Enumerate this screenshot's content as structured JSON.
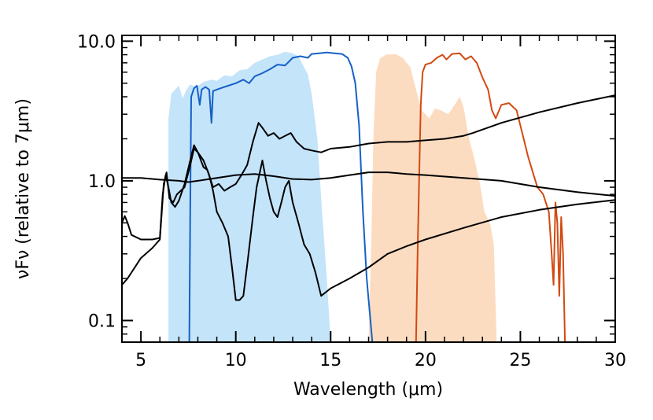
{
  "chart_data": {
    "type": "line",
    "title": "",
    "xlabel": "Wavelength (μm)",
    "ylabel": "νFν (relative to 7μm)",
    "xlim": [
      4,
      30
    ],
    "ylim": [
      0.07,
      11
    ],
    "yscale": "log",
    "grid": false,
    "legend": "none",
    "x_ticks": [
      5,
      10,
      15,
      20,
      25,
      30
    ],
    "x_tick_labels": [
      "5",
      "10",
      "15",
      "20",
      "25",
      "30"
    ],
    "y_ticks": [
      0.1,
      1.0,
      10.0
    ],
    "y_tick_labels": [
      "0.1",
      "1.0",
      "10.0"
    ],
    "colors": {
      "blue_band": "#c4e4fa",
      "orange_band": "#fcdcc0",
      "blue_curve": "#1560c8",
      "orange_curve": "#d24a12",
      "black_curves": "#000000"
    },
    "filled_bands": [
      {
        "color": "#c4e4fa",
        "points": [
          [
            6.45,
            0.07
          ],
          [
            6.45,
            2.8
          ],
          [
            6.6,
            4.2
          ],
          [
            6.8,
            4.5
          ],
          [
            7.0,
            4.8
          ],
          [
            7.2,
            3.9
          ],
          [
            7.4,
            4.5
          ],
          [
            7.6,
            4.9
          ],
          [
            7.9,
            4.7
          ],
          [
            8.3,
            5.1
          ],
          [
            8.7,
            5.3
          ],
          [
            9.0,
            5.2
          ],
          [
            9.4,
            5.7
          ],
          [
            9.8,
            5.6
          ],
          [
            10.2,
            6.2
          ],
          [
            10.6,
            6.3
          ],
          [
            11.0,
            7.0
          ],
          [
            11.4,
            7.4
          ],
          [
            11.8,
            7.8
          ],
          [
            12.2,
            8.0
          ],
          [
            12.6,
            8.4
          ],
          [
            13.0,
            8.2
          ],
          [
            13.3,
            7.8
          ],
          [
            13.6,
            6.5
          ],
          [
            13.8,
            5.8
          ],
          [
            14.0,
            4.2
          ],
          [
            14.3,
            2.0
          ],
          [
            14.55,
            0.6
          ],
          [
            14.8,
            0.2
          ],
          [
            15.0,
            0.07
          ]
        ]
      },
      {
        "color": "#fcdcc0",
        "points": [
          [
            17.0,
            0.07
          ],
          [
            17.15,
            0.4
          ],
          [
            17.25,
            2.0
          ],
          [
            17.4,
            6.0
          ],
          [
            17.6,
            7.5
          ],
          [
            17.9,
            8.0
          ],
          [
            18.4,
            8.1
          ],
          [
            18.8,
            7.6
          ],
          [
            19.2,
            6.5
          ],
          [
            19.5,
            4.5
          ],
          [
            19.8,
            3.2
          ],
          [
            20.2,
            2.8
          ],
          [
            20.5,
            3.3
          ],
          [
            20.8,
            3.2
          ],
          [
            21.2,
            3.0
          ],
          [
            21.6,
            3.6
          ],
          [
            21.8,
            4.0
          ],
          [
            22.0,
            3.4
          ],
          [
            22.3,
            2.0
          ],
          [
            22.6,
            1.4
          ],
          [
            22.9,
            0.9
          ],
          [
            23.1,
            0.6
          ],
          [
            23.4,
            0.5
          ],
          [
            23.6,
            0.35
          ],
          [
            23.75,
            0.07
          ]
        ]
      }
    ],
    "series": [
      {
        "color": "#1560c8",
        "points": [
          [
            7.55,
            0.07
          ],
          [
            7.6,
            0.6
          ],
          [
            7.65,
            4.0
          ],
          [
            7.8,
            4.6
          ],
          [
            7.95,
            4.8
          ],
          [
            8.1,
            3.5
          ],
          [
            8.2,
            4.5
          ],
          [
            8.4,
            4.7
          ],
          [
            8.6,
            4.5
          ],
          [
            8.72,
            2.6
          ],
          [
            8.8,
            4.4
          ],
          [
            9.2,
            4.6
          ],
          [
            9.6,
            4.8
          ],
          [
            10.0,
            5.0
          ],
          [
            10.4,
            5.3
          ],
          [
            10.7,
            5.0
          ],
          [
            11.0,
            5.6
          ],
          [
            11.4,
            5.9
          ],
          [
            11.8,
            6.3
          ],
          [
            12.2,
            6.8
          ],
          [
            12.6,
            6.7
          ],
          [
            13.0,
            7.6
          ],
          [
            13.4,
            7.8
          ],
          [
            13.8,
            7.6
          ],
          [
            14.0,
            8.1
          ],
          [
            14.4,
            8.2
          ],
          [
            14.8,
            8.3
          ],
          [
            15.2,
            8.2
          ],
          [
            15.6,
            8.1
          ],
          [
            15.9,
            7.6
          ],
          [
            16.1,
            6.6
          ],
          [
            16.3,
            5.0
          ],
          [
            16.5,
            2.5
          ],
          [
            16.7,
            0.6
          ],
          [
            16.9,
            0.2
          ],
          [
            17.2,
            0.07
          ]
        ]
      },
      {
        "color": "#d24a12",
        "points": [
          [
            19.5,
            0.07
          ],
          [
            19.6,
            0.4
          ],
          [
            19.75,
            3.5
          ],
          [
            19.85,
            6.0
          ],
          [
            20.0,
            6.8
          ],
          [
            20.3,
            7.0
          ],
          [
            20.6,
            7.6
          ],
          [
            20.9,
            8.0
          ],
          [
            21.1,
            7.4
          ],
          [
            21.4,
            8.1
          ],
          [
            21.8,
            8.2
          ],
          [
            22.1,
            7.4
          ],
          [
            22.4,
            7.8
          ],
          [
            22.7,
            7.0
          ],
          [
            23.0,
            5.5
          ],
          [
            23.3,
            4.5
          ],
          [
            23.5,
            3.2
          ],
          [
            23.7,
            2.8
          ],
          [
            24.0,
            3.5
          ],
          [
            24.4,
            3.6
          ],
          [
            24.8,
            3.2
          ],
          [
            25.1,
            2.2
          ],
          [
            25.4,
            1.5
          ],
          [
            25.7,
            1.1
          ],
          [
            25.9,
            0.9
          ],
          [
            26.2,
            0.8
          ],
          [
            26.5,
            0.6
          ],
          [
            26.65,
            0.3
          ],
          [
            26.75,
            0.18
          ],
          [
            26.85,
            0.7
          ],
          [
            26.95,
            0.5
          ],
          [
            27.05,
            0.15
          ],
          [
            27.15,
            0.55
          ],
          [
            27.25,
            0.3
          ],
          [
            27.35,
            0.07
          ]
        ]
      },
      {
        "color": "#000000",
        "points": [
          [
            4.0,
            0.18
          ],
          [
            4.3,
            0.2
          ],
          [
            5.0,
            0.28
          ],
          [
            5.6,
            0.33
          ],
          [
            6.0,
            0.38
          ],
          [
            6.2,
            0.95
          ],
          [
            6.35,
            1.15
          ],
          [
            6.5,
            0.75
          ],
          [
            6.7,
            0.7
          ],
          [
            6.9,
            0.8
          ],
          [
            7.3,
            0.9
          ],
          [
            7.6,
            1.3
          ],
          [
            7.8,
            1.7
          ],
          [
            8.0,
            1.6
          ],
          [
            8.3,
            1.4
          ],
          [
            8.6,
            1.1
          ],
          [
            8.8,
            0.85
          ],
          [
            9.0,
            0.6
          ],
          [
            9.3,
            0.5
          ],
          [
            9.6,
            0.4
          ],
          [
            9.8,
            0.24
          ],
          [
            10.0,
            0.14
          ],
          [
            10.2,
            0.14
          ],
          [
            10.4,
            0.15
          ],
          [
            10.6,
            0.25
          ],
          [
            10.9,
            0.55
          ],
          [
            11.1,
            0.9
          ],
          [
            11.4,
            1.4
          ],
          [
            11.6,
            1.0
          ],
          [
            11.8,
            0.75
          ],
          [
            12.0,
            0.6
          ],
          [
            12.2,
            0.55
          ],
          [
            12.4,
            0.7
          ],
          [
            12.6,
            0.9
          ],
          [
            12.8,
            1.0
          ],
          [
            13.0,
            0.7
          ],
          [
            13.3,
            0.5
          ],
          [
            13.6,
            0.35
          ],
          [
            13.9,
            0.3
          ],
          [
            14.2,
            0.22
          ],
          [
            14.5,
            0.15
          ],
          [
            15.0,
            0.17
          ],
          [
            16.0,
            0.2
          ],
          [
            17.0,
            0.24
          ],
          [
            18.0,
            0.3
          ],
          [
            19.0,
            0.34
          ],
          [
            20.0,
            0.38
          ],
          [
            22.0,
            0.46
          ],
          [
            24.0,
            0.55
          ],
          [
            26.0,
            0.62
          ],
          [
            28.0,
            0.68
          ],
          [
            30.0,
            0.73
          ]
        ]
      },
      {
        "color": "#000000",
        "points": [
          [
            4.0,
            1.05
          ],
          [
            5.0,
            1.05
          ],
          [
            6.0,
            1.02
          ],
          [
            7.0,
            1.0
          ],
          [
            7.5,
            0.98
          ],
          [
            8.0,
            1.0
          ],
          [
            9.0,
            1.05
          ],
          [
            10.0,
            1.1
          ],
          [
            11.0,
            1.12
          ],
          [
            12.0,
            1.08
          ],
          [
            13.0,
            1.03
          ],
          [
            14.0,
            1.02
          ],
          [
            15.0,
            1.05
          ],
          [
            16.0,
            1.1
          ],
          [
            17.0,
            1.15
          ],
          [
            18.0,
            1.15
          ],
          [
            19.0,
            1.12
          ],
          [
            20.0,
            1.1
          ],
          [
            22.0,
            1.05
          ],
          [
            24.0,
            1.0
          ],
          [
            26.0,
            0.9
          ],
          [
            28.0,
            0.83
          ],
          [
            30.0,
            0.78
          ]
        ]
      },
      {
        "color": "#000000",
        "points": [
          [
            4.0,
            0.5
          ],
          [
            4.15,
            0.56
          ],
          [
            4.3,
            0.5
          ],
          [
            4.5,
            0.41
          ],
          [
            5.0,
            0.38
          ],
          [
            5.6,
            0.38
          ],
          [
            6.0,
            0.39
          ],
          [
            6.15,
            0.8
          ],
          [
            6.3,
            1.1
          ],
          [
            6.45,
            0.9
          ],
          [
            6.6,
            0.7
          ],
          [
            6.8,
            0.65
          ],
          [
            7.0,
            0.72
          ],
          [
            7.3,
            0.95
          ],
          [
            7.6,
            1.4
          ],
          [
            7.8,
            1.8
          ],
          [
            8.0,
            1.6
          ],
          [
            8.3,
            1.25
          ],
          [
            8.5,
            1.2
          ],
          [
            8.8,
            0.9
          ],
          [
            9.1,
            0.95
          ],
          [
            9.4,
            0.85
          ],
          [
            9.7,
            0.9
          ],
          [
            10.0,
            0.95
          ],
          [
            10.3,
            1.1
          ],
          [
            10.6,
            1.3
          ],
          [
            10.9,
            1.9
          ],
          [
            11.2,
            2.6
          ],
          [
            11.4,
            2.4
          ],
          [
            11.7,
            2.1
          ],
          [
            12.0,
            2.2
          ],
          [
            12.3,
            2.0
          ],
          [
            12.6,
            2.1
          ],
          [
            12.9,
            2.2
          ],
          [
            13.2,
            1.9
          ],
          [
            13.6,
            1.7
          ],
          [
            14.0,
            1.65
          ],
          [
            14.5,
            1.6
          ],
          [
            15.0,
            1.7
          ],
          [
            16.0,
            1.75
          ],
          [
            17.0,
            1.85
          ],
          [
            18.0,
            1.9
          ],
          [
            19.0,
            1.9
          ],
          [
            20.0,
            1.95
          ],
          [
            21.0,
            2.0
          ],
          [
            22.0,
            2.1
          ],
          [
            22.5,
            2.2
          ],
          [
            24.0,
            2.6
          ],
          [
            26.0,
            3.1
          ],
          [
            28.0,
            3.6
          ],
          [
            30.0,
            4.1
          ]
        ]
      }
    ]
  }
}
